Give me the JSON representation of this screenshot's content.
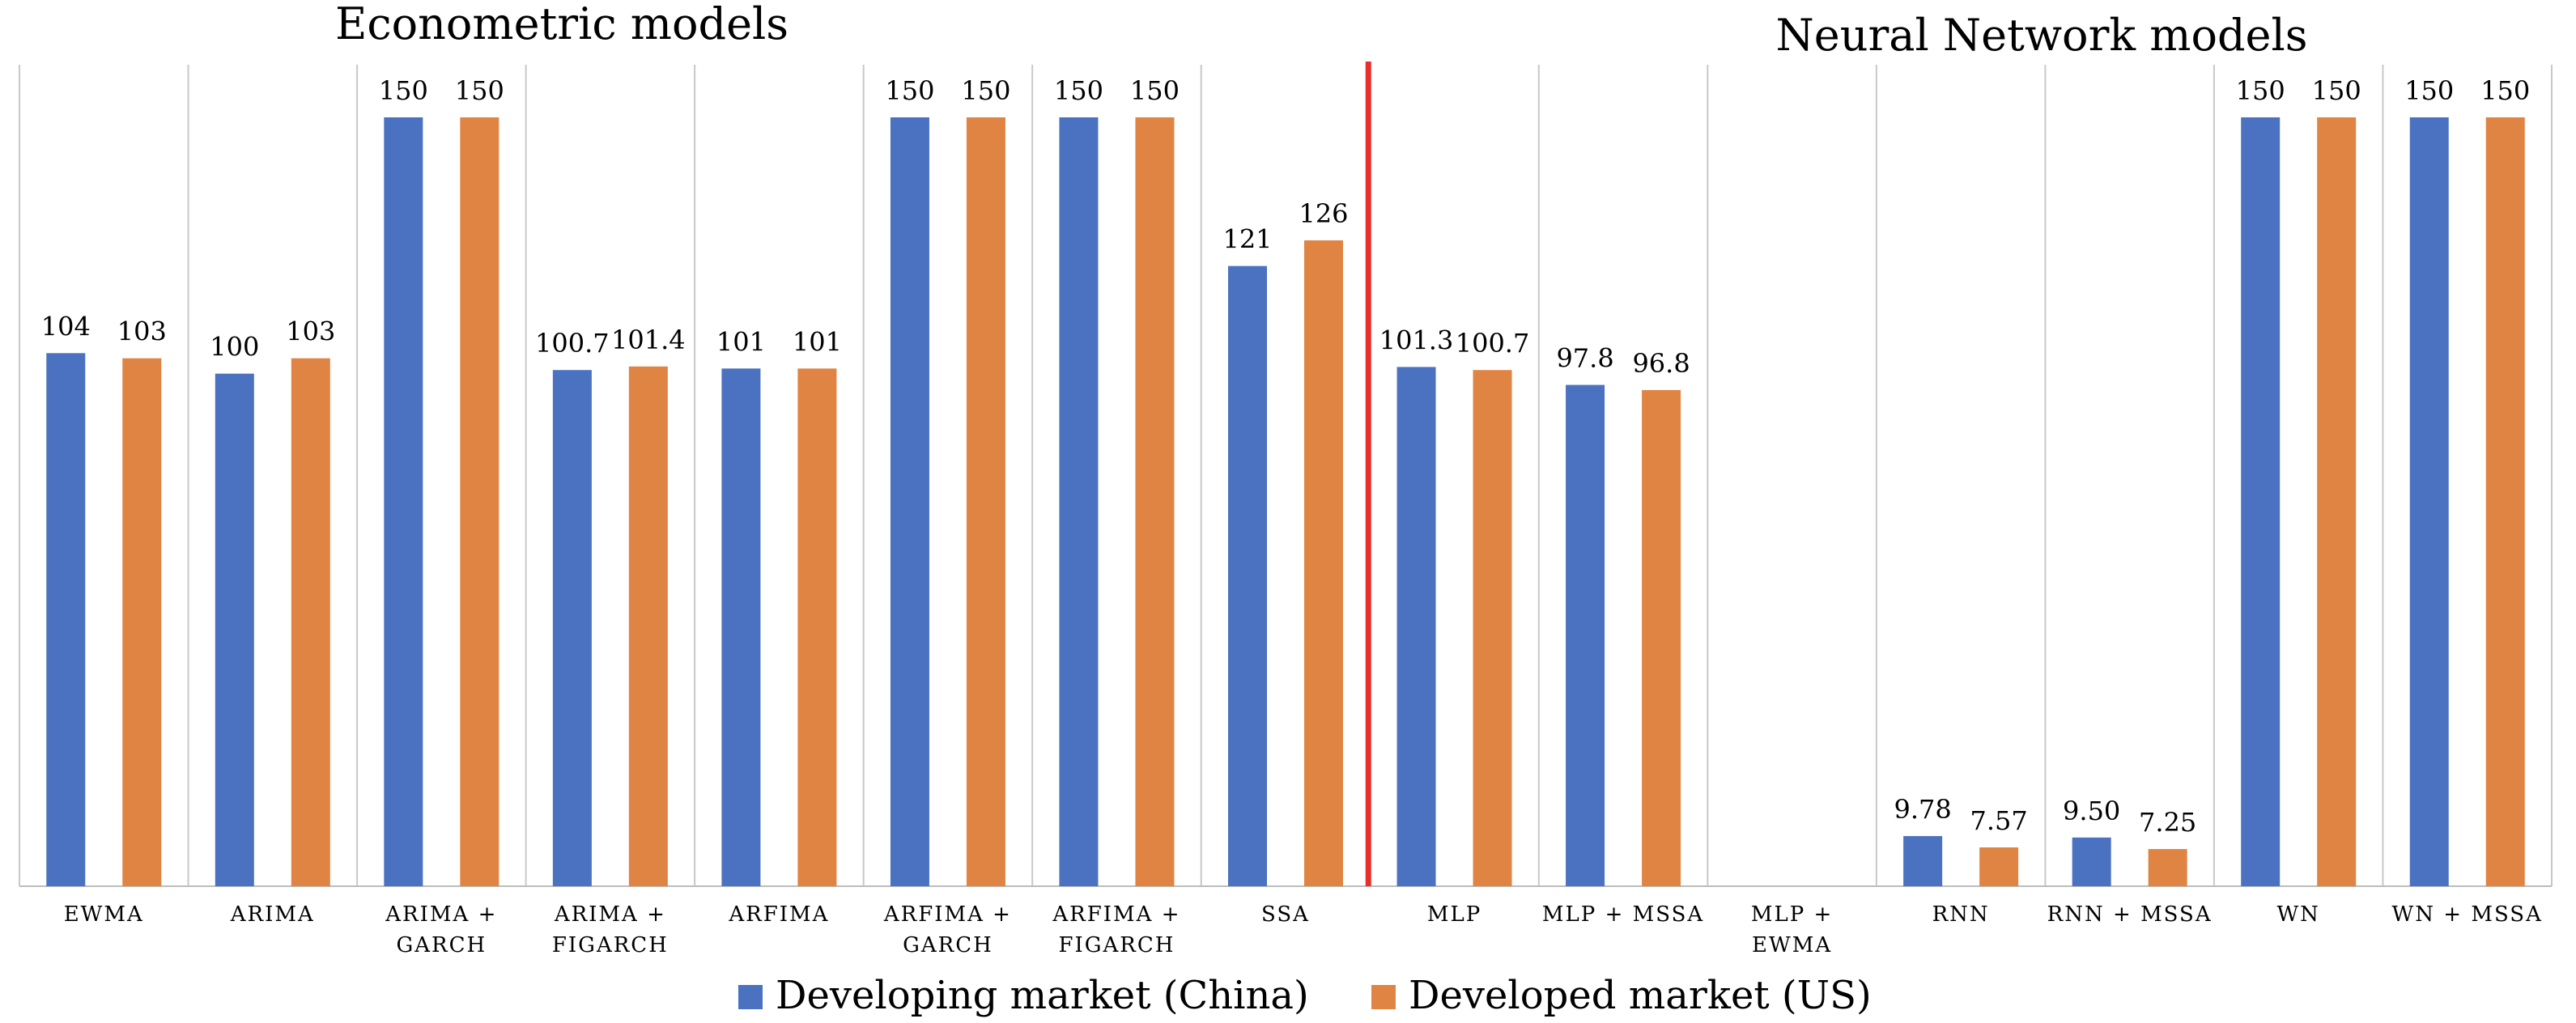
{
  "chart_data": {
    "type": "bar",
    "group_titles": {
      "left": "Econometric models",
      "right": "Neural Network models"
    },
    "categories": [
      [
        "EWMA"
      ],
      [
        "ARIMA"
      ],
      [
        "ARIMA +",
        "GARCH"
      ],
      [
        "ARIMA +",
        "FIGARCH"
      ],
      [
        "ARFIMA"
      ],
      [
        "ARFIMA +",
        "GARCH"
      ],
      [
        "ARFIMA +",
        "FIGARCH"
      ],
      [
        "SSA"
      ],
      [
        "MLP"
      ],
      [
        "MLP + MSSA"
      ],
      [
        "MLP +",
        "EWMA"
      ],
      [
        "RNN"
      ],
      [
        "RNN + MSSA"
      ],
      [
        "WN"
      ],
      [
        "WN + MSSA"
      ]
    ],
    "series": [
      {
        "name": "Developing market (China)",
        "color": "#4a72c0",
        "values": [
          104,
          100,
          150,
          100.7,
          101,
          150,
          150,
          121,
          101.3,
          97.8,
          null,
          9.78,
          9.5,
          150,
          150
        ],
        "labels": [
          "104",
          "100",
          "150",
          "100.7",
          "101",
          "150",
          "150",
          "121",
          "101.3",
          "97.8",
          "",
          "9.78",
          "9.50",
          "150",
          "150"
        ]
      },
      {
        "name": "Developed market (US)",
        "color": "#e08443",
        "values": [
          103,
          103,
          150,
          101.4,
          101,
          150,
          150,
          126,
          100.7,
          96.8,
          null,
          7.57,
          7.25,
          150,
          150
        ],
        "labels": [
          "103",
          "103",
          "150",
          "101.4",
          "101",
          "150",
          "150",
          "126",
          "100.7",
          "96.8",
          "",
          "7.57",
          "7.25",
          "150",
          "150"
        ]
      }
    ],
    "ylim": [
      0,
      160
    ],
    "separator_color": "#e8302a",
    "separator_after_category": 8,
    "grid": false,
    "legend_position": "bottom"
  }
}
